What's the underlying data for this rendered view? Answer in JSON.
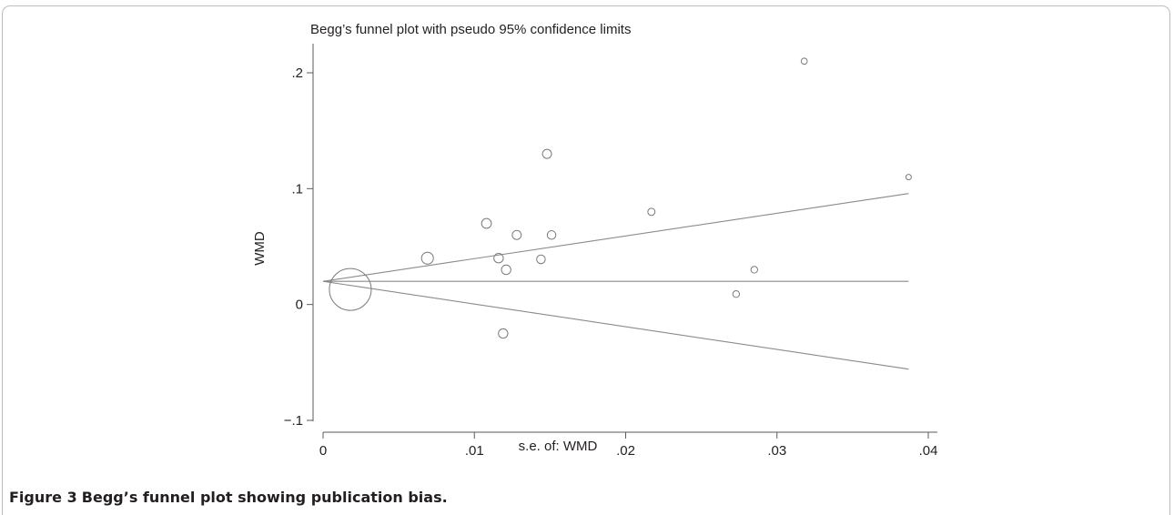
{
  "figure": {
    "label": "Figure 3",
    "caption": "Begg’s funnel plot showing publication bias."
  },
  "chart_data": {
    "type": "scatter",
    "title": "Begg’s funnel plot with pseudo 95% confidence limits",
    "xlabel": "s.e. of: WMD",
    "ylabel": "WMD",
    "xlim": [
      0,
      0.04
    ],
    "ylim": [
      -0.1,
      0.21
    ],
    "x_ticks": [
      {
        "value": 0,
        "label": "0"
      },
      {
        "value": 0.01,
        "label": ".01"
      },
      {
        "value": 0.02,
        "label": ".02"
      },
      {
        "value": 0.03,
        "label": ".03"
      },
      {
        "value": 0.04,
        "label": ".04"
      }
    ],
    "y_ticks": [
      {
        "value": -0.1,
        "label": "−.1"
      },
      {
        "value": 0,
        "label": "0"
      },
      {
        "value": 0.1,
        "label": ".1"
      },
      {
        "value": 0.2,
        "label": ".2"
      }
    ],
    "pooled_estimate": 0.02,
    "funnel_limits": {
      "x": [
        0,
        0.0387
      ],
      "upper": [
        0.02,
        0.0958
      ],
      "lower": [
        0.02,
        -0.0558
      ]
    },
    "points": [
      {
        "x": 0.0018,
        "y": 0.013,
        "weight": 1.0
      },
      {
        "x": 0.0069,
        "y": 0.04,
        "weight": 0.19
      },
      {
        "x": 0.0108,
        "y": 0.07,
        "weight": 0.13
      },
      {
        "x": 0.0116,
        "y": 0.04,
        "weight": 0.12
      },
      {
        "x": 0.0119,
        "y": -0.025,
        "weight": 0.12
      },
      {
        "x": 0.0121,
        "y": 0.03,
        "weight": 0.12
      },
      {
        "x": 0.0128,
        "y": 0.06,
        "weight": 0.11
      },
      {
        "x": 0.0144,
        "y": 0.039,
        "weight": 0.1
      },
      {
        "x": 0.0148,
        "y": 0.13,
        "weight": 0.11
      },
      {
        "x": 0.0151,
        "y": 0.06,
        "weight": 0.1
      },
      {
        "x": 0.0217,
        "y": 0.08,
        "weight": 0.07
      },
      {
        "x": 0.0273,
        "y": 0.009,
        "weight": 0.06
      },
      {
        "x": 0.0285,
        "y": 0.03,
        "weight": 0.06
      },
      {
        "x": 0.0318,
        "y": 0.21,
        "weight": 0.05
      },
      {
        "x": 0.0387,
        "y": 0.11,
        "weight": 0.04
      }
    ],
    "colors": {
      "marker": "#7a7a7a",
      "lines": "#8a8a8a",
      "axis": "#5a5a5a"
    },
    "grid": false,
    "legend": "none"
  }
}
